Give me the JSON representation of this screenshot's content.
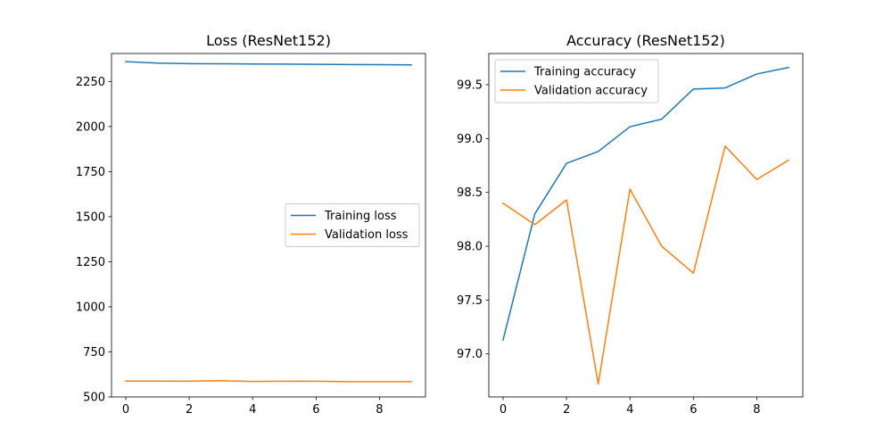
{
  "chart_data": [
    {
      "type": "line",
      "title": "Loss (ResNet152)",
      "xlabel": "",
      "ylabel": "",
      "x": [
        0,
        1,
        2,
        3,
        4,
        5,
        6,
        7,
        8,
        9
      ],
      "xlim": [
        -0.45,
        9.45
      ],
      "ylim": [
        500,
        2405
      ],
      "xticks": [
        0,
        2,
        4,
        6,
        8
      ],
      "yticks": [
        500,
        750,
        1000,
        1250,
        1500,
        1750,
        2000,
        2250
      ],
      "xtick_labels": [
        "0",
        "2",
        "4",
        "6",
        "8"
      ],
      "ytick_labels": [
        "500",
        "750",
        "1000",
        "1250",
        "1500",
        "1750",
        "2000",
        "2250"
      ],
      "grid": false,
      "legend_position": "center-right",
      "series": [
        {
          "name": "Training loss",
          "color": "#1f77b4",
          "values": [
            2360,
            2352,
            2349,
            2348,
            2347,
            2346,
            2345,
            2344,
            2343,
            2342
          ]
        },
        {
          "name": "Validation loss",
          "color": "#ff7f0e",
          "values": [
            588,
            588,
            587,
            590,
            586,
            587,
            587,
            585,
            585,
            585
          ]
        }
      ]
    },
    {
      "type": "line",
      "title": "Accuracy (ResNet152)",
      "xlabel": "",
      "ylabel": "",
      "x": [
        0,
        1,
        2,
        3,
        4,
        5,
        6,
        7,
        8,
        9
      ],
      "xlim": [
        -0.45,
        9.45
      ],
      "ylim": [
        96.6,
        99.79
      ],
      "xticks": [
        0,
        2,
        4,
        6,
        8
      ],
      "yticks": [
        97.0,
        97.5,
        98.0,
        98.5,
        99.0,
        99.5
      ],
      "xtick_labels": [
        "0",
        "2",
        "4",
        "6",
        "8"
      ],
      "ytick_labels": [
        "97.0",
        "97.5",
        "98.0",
        "98.5",
        "99.0",
        "99.5"
      ],
      "grid": false,
      "legend_position": "upper-left",
      "series": [
        {
          "name": "Training accuracy",
          "color": "#1f77b4",
          "values": [
            97.13,
            98.3,
            98.77,
            98.88,
            99.11,
            99.18,
            99.46,
            99.47,
            99.6,
            99.66
          ]
        },
        {
          "name": "Validation accuracy",
          "color": "#ff7f0e",
          "values": [
            98.4,
            98.2,
            98.43,
            96.72,
            98.53,
            98.0,
            97.75,
            98.93,
            98.62,
            98.8
          ]
        }
      ]
    }
  ]
}
